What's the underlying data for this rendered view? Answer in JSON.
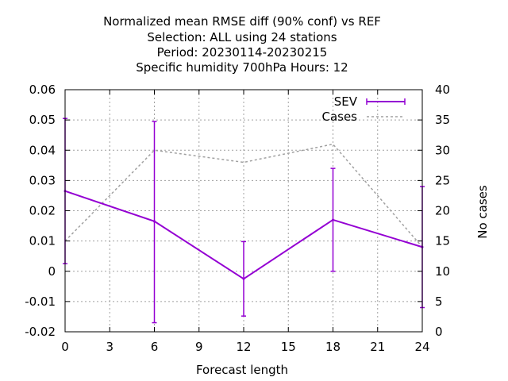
{
  "chart_data": {
    "type": "line",
    "title_lines": [
      "Normalized mean RMSE diff (90% conf) vs REF",
      "Selection: ALL using    24 stations",
      "Period: 20230114-20230215",
      "Specific humidity 700hPa   Hours:  12"
    ],
    "xlabel": "Forecast length",
    "ylabel_right": "No cases",
    "xlim": [
      0,
      24
    ],
    "ylim": [
      -0.02,
      0.06
    ],
    "y2lim": [
      0,
      40
    ],
    "x_ticks": [
      0,
      3,
      6,
      9,
      12,
      15,
      18,
      21,
      24
    ],
    "x_tick_labels": [
      "0",
      "3",
      "6",
      "9",
      "12",
      "15",
      "18",
      "21",
      "24"
    ],
    "y_ticks": [
      -0.02,
      -0.01,
      0,
      0.01,
      0.02,
      0.03,
      0.04,
      0.05,
      0.06
    ],
    "y_tick_labels": [
      "-0.02",
      "-0.01",
      "0",
      "0.01",
      "0.02",
      "0.03",
      "0.04",
      "0.05",
      "0.06"
    ],
    "y2_ticks": [
      0,
      5,
      10,
      15,
      20,
      25,
      30,
      35,
      40
    ],
    "y2_tick_labels": [
      "0",
      "5",
      "10",
      "15",
      "20",
      "25",
      "30",
      "35",
      "40"
    ],
    "grid": true,
    "legend_position": "top-right",
    "series": [
      {
        "name": "SEV",
        "axis": "left",
        "color": "#9400d3",
        "style": "solid-errorbars",
        "x": [
          0,
          6,
          12,
          18,
          24
        ],
        "y": [
          0.0265,
          0.0165,
          -0.0025,
          0.017,
          0.008
        ],
        "err_low": [
          0.0025,
          -0.017,
          -0.0148,
          0.0,
          -0.012
        ],
        "err_high": [
          0.0505,
          0.0495,
          0.0098,
          0.034,
          0.028
        ]
      },
      {
        "name": "Cases",
        "axis": "right",
        "color": "#a0a0a0",
        "style": "dashed",
        "x": [
          0,
          6,
          12,
          18,
          24
        ],
        "y": [
          15,
          30,
          28,
          31,
          14
        ]
      }
    ]
  }
}
